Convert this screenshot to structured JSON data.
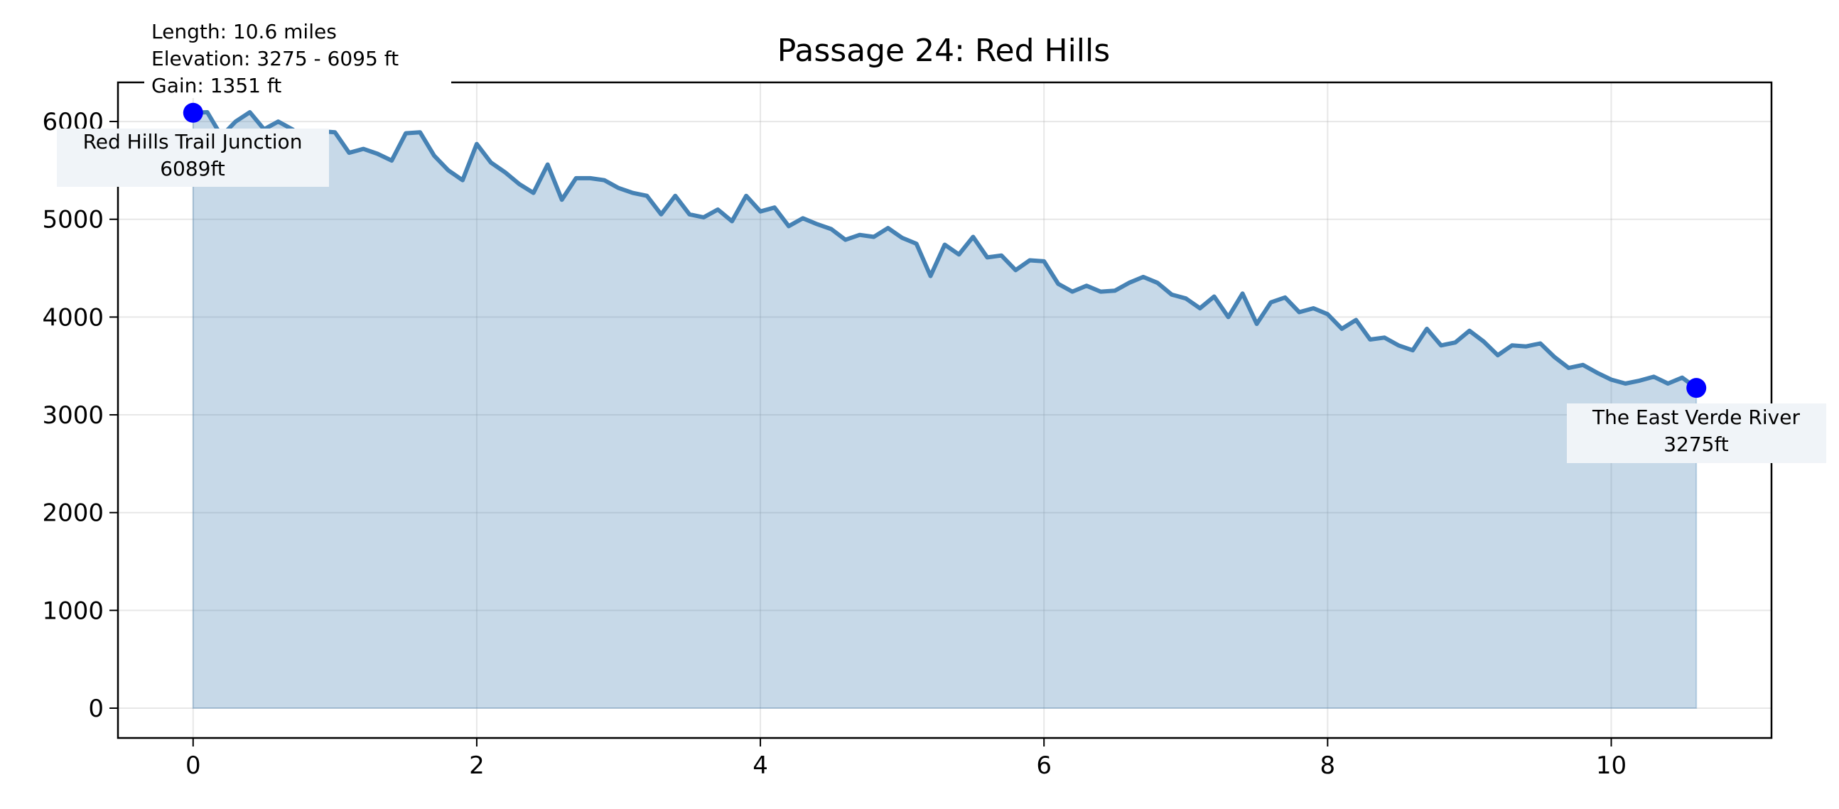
{
  "chart_data": {
    "type": "area",
    "title": "Passage 24: Red Hills",
    "xlabel": "",
    "ylabel": "",
    "xlim": [
      -0.53,
      11.13
    ],
    "ylim": [
      -305,
      6400
    ],
    "x_ticks": [
      0,
      2,
      4,
      6,
      8,
      10
    ],
    "y_ticks": [
      0,
      1000,
      2000,
      3000,
      4000,
      5000,
      6000
    ],
    "grid": true,
    "line_color": "#4682b4",
    "fill_color": "#c6d7e7",
    "marker_color": "#0000ff",
    "stats": [
      "Length: 10.6 miles",
      "Elevation: 3275 - 6095 ft",
      "Gain: 1351 ft"
    ],
    "start_point": {
      "x": 0,
      "y": 6089,
      "name": "Red Hills Trail Junction",
      "label": "6089ft"
    },
    "end_point": {
      "x": 10.6,
      "y": 3275,
      "name": "The East Verde River",
      "label": "3275ft"
    },
    "series": [
      {
        "x": [
          0,
          0.1,
          0.2,
          0.3,
          0.4,
          0.5,
          0.6,
          0.7,
          0.8,
          0.9,
          1.0,
          1.1,
          1.2,
          1.3,
          1.4,
          1.5,
          1.6,
          1.7,
          1.8,
          1.9,
          2.0,
          2.1,
          2.2,
          2.3,
          2.4,
          2.5,
          2.6,
          2.7,
          2.8,
          2.9,
          3.0,
          3.1,
          3.2,
          3.3,
          3.4,
          3.5,
          3.6,
          3.7,
          3.8,
          3.9,
          4.0,
          4.1,
          4.2,
          4.3,
          4.4,
          4.5,
          4.6,
          4.7,
          4.8,
          4.9,
          5.0,
          5.1,
          5.2,
          5.3,
          5.4,
          5.5,
          5.6,
          5.7,
          5.8,
          5.9,
          6.0,
          6.1,
          6.2,
          6.3,
          6.4,
          6.5,
          6.6,
          6.7,
          6.8,
          6.9,
          7.0,
          7.1,
          7.2,
          7.3,
          7.4,
          7.5,
          7.6,
          7.7,
          7.8,
          7.9,
          8.0,
          8.1,
          8.2,
          8.3,
          8.4,
          8.5,
          8.6,
          8.7,
          8.8,
          8.9,
          9.0,
          9.1,
          9.2,
          9.3,
          9.4,
          9.5,
          9.6,
          9.7,
          9.8,
          9.9,
          10.0,
          10.1,
          10.2,
          10.3,
          10.4,
          10.5,
          10.6
        ],
        "y": [
          6089,
          6095,
          5850,
          6000,
          6095,
          5920,
          6000,
          5920,
          5800,
          5900,
          5890,
          5680,
          5720,
          5670,
          5600,
          5880,
          5890,
          5650,
          5500,
          5400,
          5770,
          5580,
          5480,
          5360,
          5270,
          5560,
          5200,
          5420,
          5420,
          5400,
          5320,
          5270,
          5240,
          5050,
          5240,
          5050,
          5020,
          5100,
          4980,
          5240,
          5080,
          5120,
          4930,
          5010,
          4950,
          4900,
          4790,
          4840,
          4820,
          4910,
          4810,
          4750,
          4420,
          4740,
          4640,
          4820,
          4610,
          4630,
          4480,
          4580,
          4570,
          4340,
          4260,
          4320,
          4260,
          4270,
          4350,
          4410,
          4350,
          4230,
          4190,
          4090,
          4210,
          4000,
          4240,
          3930,
          4150,
          4200,
          4050,
          4090,
          4030,
          3880,
          3970,
          3770,
          3790,
          3710,
          3660,
          3880,
          3710,
          3740,
          3860,
          3750,
          3610,
          3710,
          3700,
          3730,
          3590,
          3480,
          3510,
          3430,
          3360,
          3320,
          3350,
          3390,
          3320,
          3380,
          3275
        ]
      }
    ]
  }
}
